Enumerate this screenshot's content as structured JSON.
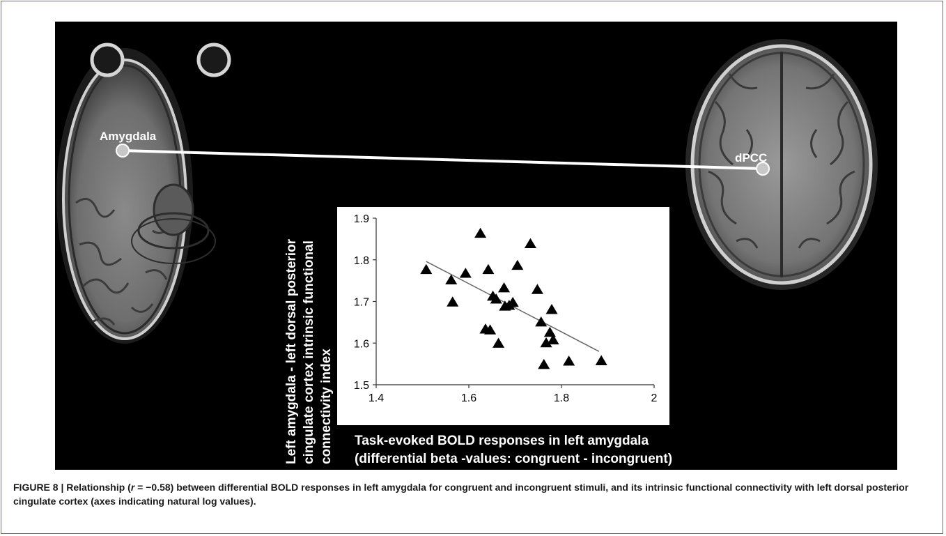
{
  "figure": {
    "region_left_label": "Amygdala",
    "region_right_label": "dPCC",
    "y_axis_lines": [
      "Left amygdala - left dorsal posterior",
      "cingulate cortex intrinsic functional",
      "connectivity index"
    ],
    "x_axis_lines": [
      "Task-evoked BOLD responses in left amygdala",
      "(differential beta -values: congruent - incongruent)"
    ]
  },
  "chart_data": {
    "type": "scatter",
    "marker": "triangle",
    "color": "#000000",
    "xlim": [
      1.4,
      2.0
    ],
    "ylim": [
      1.5,
      1.9
    ],
    "x_ticks": [
      1.4,
      1.6,
      1.8,
      2.0
    ],
    "x_tick_labels": [
      "1.4",
      "1.6",
      "1.8",
      "2"
    ],
    "y_ticks": [
      1.5,
      1.6,
      1.7,
      1.8,
      1.9
    ],
    "y_tick_labels": [
      "1.5",
      "1.6",
      "1.7",
      "1.8",
      "1.9"
    ],
    "grid": false,
    "points": [
      {
        "x": 1.508,
        "y": 1.775
      },
      {
        "x": 1.562,
        "y": 1.75
      },
      {
        "x": 1.565,
        "y": 1.697
      },
      {
        "x": 1.593,
        "y": 1.766
      },
      {
        "x": 1.625,
        "y": 1.862
      },
      {
        "x": 1.636,
        "y": 1.632
      },
      {
        "x": 1.642,
        "y": 1.775
      },
      {
        "x": 1.646,
        "y": 1.63
      },
      {
        "x": 1.652,
        "y": 1.711
      },
      {
        "x": 1.659,
        "y": 1.704
      },
      {
        "x": 1.664,
        "y": 1.598
      },
      {
        "x": 1.676,
        "y": 1.731
      },
      {
        "x": 1.678,
        "y": 1.687
      },
      {
        "x": 1.687,
        "y": 1.689
      },
      {
        "x": 1.695,
        "y": 1.696
      },
      {
        "x": 1.705,
        "y": 1.785
      },
      {
        "x": 1.733,
        "y": 1.837
      },
      {
        "x": 1.748,
        "y": 1.727
      },
      {
        "x": 1.756,
        "y": 1.649
      },
      {
        "x": 1.762,
        "y": 1.547
      },
      {
        "x": 1.767,
        "y": 1.599
      },
      {
        "x": 1.775,
        "y": 1.624
      },
      {
        "x": 1.779,
        "y": 1.679
      },
      {
        "x": 1.782,
        "y": 1.606
      },
      {
        "x": 1.816,
        "y": 1.555
      },
      {
        "x": 1.886,
        "y": 1.556
      }
    ],
    "trendline": {
      "x": [
        1.508,
        1.881
      ],
      "y": [
        1.796,
        1.58
      ]
    }
  },
  "caption": {
    "prefix": "FIGURE 8 | Relationship (",
    "r_symbol": "r",
    "r_value": " = −0.58",
    "rest": ") between differential BOLD responses in left amygdala for congruent and incongruent stimuli, and its intrinsic functional connectivity with left dorsal posterior cingulate cortex (axes indicating natural log values)."
  }
}
